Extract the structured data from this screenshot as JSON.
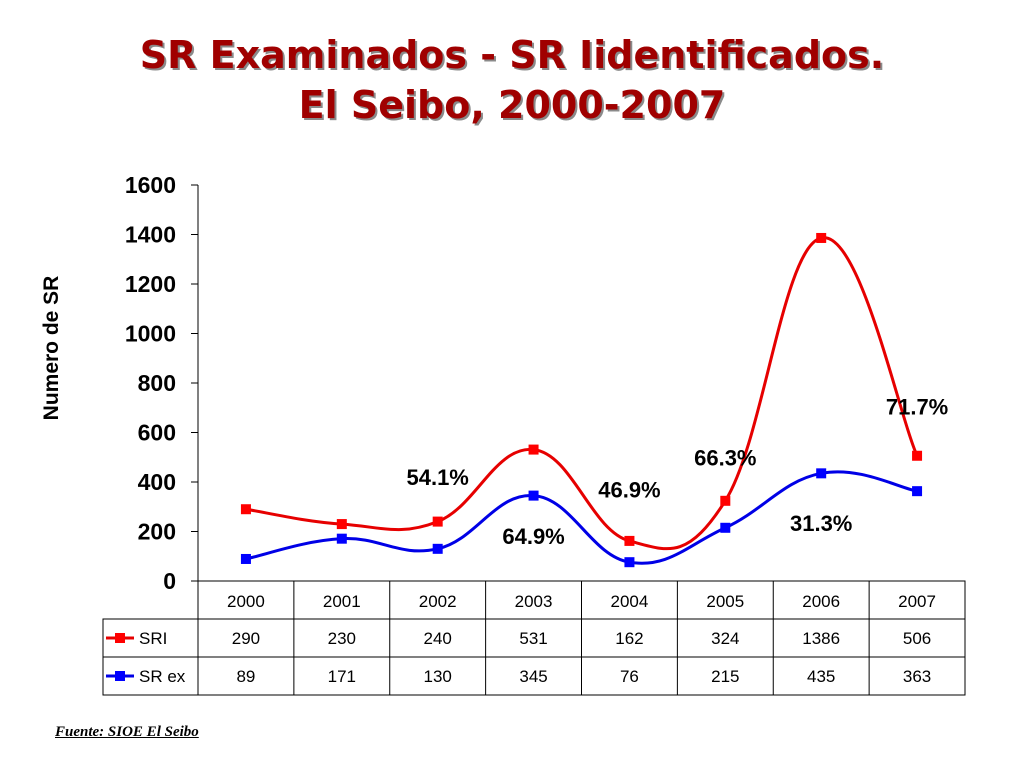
{
  "title": {
    "line1": "SR Examinados - SR Iidentificados.",
    "line2": "El Seibo, 2000-2007"
  },
  "source": "Fuente: SIOE El Seibo",
  "colors": {
    "title": "#a00000",
    "sri": "#e60000",
    "srex": "#0000e6",
    "sri_marker": "#ff0000",
    "srex_marker": "#0000ff"
  },
  "chart_data": {
    "type": "line",
    "title": "",
    "xlabel": "",
    "ylabel": "Numero de SR",
    "ylim": [
      0,
      1600
    ],
    "yticks": [
      0,
      200,
      400,
      600,
      800,
      1000,
      1200,
      1400,
      1600
    ],
    "grid": false,
    "categories": [
      "2000",
      "2001",
      "2002",
      "2003",
      "2004",
      "2005",
      "2006",
      "2007"
    ],
    "series": [
      {
        "name": "SRI",
        "values": [
          290,
          230,
          240,
          531,
          162,
          324,
          1386,
          506
        ]
      },
      {
        "name": "SR ex",
        "values": [
          89,
          171,
          130,
          345,
          76,
          215,
          435,
          363
        ]
      }
    ],
    "annotations": [
      {
        "text": "54.1%",
        "x": "2002",
        "y": 420
      },
      {
        "text": "64.9%",
        "x": "2003",
        "y": 182
      },
      {
        "text": "46.9%",
        "x": "2004",
        "y": 370
      },
      {
        "text": "66.3%",
        "x": "2005",
        "y": 500
      },
      {
        "text": "31.3%",
        "x": "2006",
        "y": 235
      },
      {
        "text": "71.7%",
        "x": "2007",
        "y": 705
      }
    ],
    "data_table": true
  }
}
